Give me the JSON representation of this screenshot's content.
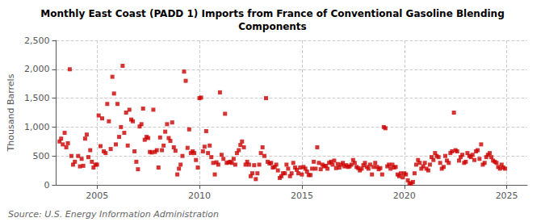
{
  "chart_data": {
    "type": "scatter",
    "title": "Monthly East Coast (PADD 1) Imports from France of Conventional Gasoline Blending\nComponents",
    "ylabel": "Thousand Barrels",
    "annotations": [
      "Source: U.S. Energy Information Administration"
    ],
    "color": "#cc0000",
    "marker": "square",
    "grid": true,
    "xlim": [
      2003.0,
      2026.0
    ],
    "xticks": [
      2005,
      2010,
      2015,
      2020,
      2025
    ],
    "ylim": [
      0,
      2500
    ],
    "yticks": [
      0,
      500,
      {
        "value": 1000,
        "label": "1,000"
      },
      {
        "value": 1500,
        "label": "1,500"
      },
      {
        "value": 2000,
        "label": "2,000"
      },
      {
        "value": 2500,
        "label": "2,500"
      }
    ],
    "x": [
      2003.17,
      2003.25,
      2003.33,
      2003.42,
      2003.5,
      2003.58,
      2003.67,
      2003.75,
      2003.83,
      2003.92,
      2004.08,
      2004.17,
      2004.25,
      2004.33,
      2004.42,
      2004.5,
      2004.58,
      2004.67,
      2004.75,
      2004.83,
      2004.92,
      2005.0,
      2005.08,
      2005.17,
      2005.25,
      2005.33,
      2005.42,
      2005.5,
      2005.58,
      2005.67,
      2005.75,
      2005.83,
      2005.92,
      2006.0,
      2006.08,
      2006.17,
      2006.25,
      2006.33,
      2006.42,
      2006.5,
      2006.58,
      2006.67,
      2006.75,
      2006.83,
      2006.92,
      2007.0,
      2007.08,
      2007.17,
      2007.25,
      2007.33,
      2007.42,
      2007.5,
      2007.58,
      2007.67,
      2007.75,
      2007.83,
      2007.92,
      2008.0,
      2008.08,
      2008.17,
      2008.25,
      2008.33,
      2008.42,
      2008.5,
      2008.58,
      2008.67,
      2008.75,
      2008.83,
      2008.92,
      2009.0,
      2009.08,
      2009.17,
      2009.25,
      2009.33,
      2009.42,
      2009.5,
      2009.58,
      2009.67,
      2009.75,
      2009.83,
      2009.92,
      2010.0,
      2010.08,
      2010.17,
      2010.25,
      2010.33,
      2010.42,
      2010.5,
      2010.58,
      2010.67,
      2010.75,
      2010.83,
      2010.92,
      2011.0,
      2011.08,
      2011.17,
      2011.25,
      2011.33,
      2011.42,
      2011.5,
      2011.58,
      2011.67,
      2011.75,
      2011.83,
      2011.92,
      2012.0,
      2012.08,
      2012.17,
      2012.25,
      2012.33,
      2012.42,
      2012.5,
      2012.58,
      2012.67,
      2012.75,
      2012.83,
      2012.92,
      2013.0,
      2013.08,
      2013.17,
      2013.25,
      2013.33,
      2013.42,
      2013.5,
      2013.58,
      2013.67,
      2013.75,
      2013.83,
      2013.92,
      2014.0,
      2014.08,
      2014.17,
      2014.25,
      2014.33,
      2014.42,
      2014.5,
      2014.58,
      2014.67,
      2014.75,
      2014.83,
      2014.92,
      2015.0,
      2015.08,
      2015.17,
      2015.25,
      2015.33,
      2015.42,
      2015.5,
      2015.58,
      2015.67,
      2015.75,
      2015.83,
      2015.92,
      2016.0,
      2016.08,
      2016.17,
      2016.25,
      2016.33,
      2016.42,
      2016.5,
      2016.58,
      2016.67,
      2016.75,
      2016.83,
      2016.92,
      2017.0,
      2017.08,
      2017.17,
      2017.25,
      2017.33,
      2017.42,
      2017.5,
      2017.58,
      2017.67,
      2017.75,
      2017.83,
      2017.92,
      2018.0,
      2018.08,
      2018.17,
      2018.25,
      2018.33,
      2018.42,
      2018.5,
      2018.58,
      2018.67,
      2018.75,
      2018.83,
      2018.92,
      2019.0,
      2019.08,
      2019.17,
      2019.25,
      2019.33,
      2019.42,
      2019.5,
      2019.58,
      2019.67,
      2019.75,
      2019.83,
      2019.92,
      2020.0,
      2020.08,
      2020.17,
      2020.25,
      2020.33,
      2020.42,
      2020.5,
      2020.58,
      2020.67,
      2020.75,
      2020.83,
      2020.92,
      2021.0,
      2021.08,
      2021.17,
      2021.25,
      2021.33,
      2021.42,
      2021.5,
      2021.58,
      2021.67,
      2021.75,
      2021.83,
      2021.92,
      2022.0,
      2022.08,
      2022.17,
      2022.25,
      2022.33,
      2022.42,
      2022.5,
      2022.58,
      2022.67,
      2022.75,
      2022.83,
      2022.92,
      2023.0,
      2023.08,
      2023.17,
      2023.25,
      2023.33,
      2023.42,
      2023.5,
      2023.58,
      2023.67,
      2023.75,
      2023.83,
      2023.92,
      2024.0,
      2024.08,
      2024.17,
      2024.25,
      2024.33,
      2024.42,
      2024.5,
      2024.58,
      2024.67,
      2024.75,
      2024.83,
      2024.92
    ],
    "values": [
      750,
      800,
      700,
      900,
      650,
      720,
      2000,
      500,
      350,
      400,
      500,
      320,
      450,
      330,
      800,
      870,
      480,
      600,
      400,
      300,
      350,
      350,
      1200,
      670,
      1150,
      580,
      550,
      1400,
      1100,
      620,
      1870,
      1580,
      700,
      1400,
      830,
      1000,
      2060,
      900,
      1250,
      680,
      1300,
      1130,
      1100,
      580,
      400,
      270,
      1010,
      1050,
      1320,
      780,
      830,
      810,
      570,
      560,
      1300,
      570,
      600,
      300,
      820,
      600,
      680,
      920,
      1050,
      810,
      760,
      1080,
      650,
      590,
      180,
      280,
      350,
      500,
      1960,
      1800,
      640,
      960,
      550,
      580,
      550,
      430,
      300,
      1500,
      1510,
      580,
      660,
      930,
      550,
      680,
      480,
      380,
      180,
      390,
      350,
      1600,
      520,
      450,
      1230,
      380,
      390,
      400,
      380,
      450,
      350,
      550,
      600,
      690,
      750,
      650,
      350,
      400,
      350,
      150,
      200,
      340,
      100,
      200,
      350,
      550,
      650,
      500,
      1500,
      400,
      370,
      380,
      300,
      310,
      350,
      250,
      120,
      150,
      200,
      200,
      350,
      280,
      150,
      200,
      380,
      300,
      260,
      200,
      300,
      180,
      310,
      280,
      230,
      170,
      170,
      280,
      400,
      280,
      650,
      380,
      270,
      350,
      320,
      330,
      280,
      380,
      400,
      350,
      420,
      290,
      360,
      300,
      350,
      380,
      320,
      340,
      310,
      320,
      350,
      430,
      380,
      310,
      290,
      250,
      280,
      340,
      380,
      310,
      280,
      350,
      180,
      310,
      380,
      310,
      270,
      290,
      180,
      1000,
      980,
      320,
      350,
      280,
      350,
      300,
      310,
      180,
      150,
      200,
      130,
      200,
      180,
      80,
      30,
      20,
      50,
      200,
      350,
      430,
      380,
      280,
      320,
      380,
      280,
      250,
      350,
      480,
      430,
      550,
      500,
      480,
      380,
      280,
      310,
      500,
      420,
      380,
      550,
      580,
      1250,
      600,
      580,
      420,
      480,
      520,
      380,
      400,
      550,
      500,
      480,
      520,
      430,
      580,
      600,
      450,
      700,
      350,
      380,
      480,
      520,
      550,
      480,
      420,
      400,
      380,
      310,
      280,
      350,
      300,
      280
    ]
  }
}
